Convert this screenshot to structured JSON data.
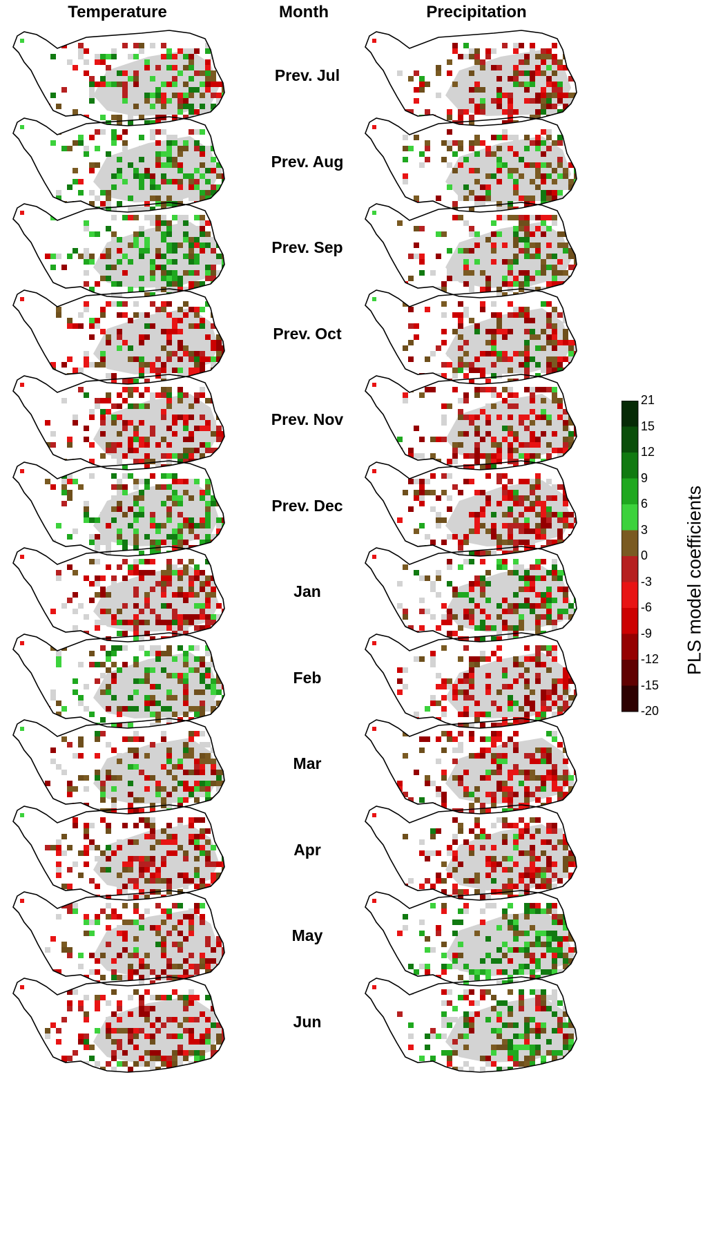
{
  "headers": {
    "temperature": "Temperature",
    "month": "Month",
    "precipitation": "Precipitation"
  },
  "months": [
    "Prev. Jul",
    "Prev. Aug",
    "Prev. Sep",
    "Prev. Oct",
    "Prev. Nov",
    "Prev. Dec",
    "Jan",
    "Feb",
    "Mar",
    "Apr",
    "May",
    "Jun"
  ],
  "panels": {
    "temperature": [
      "mixed",
      "green",
      "green",
      "red",
      "red",
      "green",
      "red",
      "green",
      "brown",
      "red",
      "red",
      "red"
    ],
    "precipitation": [
      "red",
      "brown",
      "brown",
      "red",
      "red",
      "red",
      "mixed",
      "red",
      "red",
      "red",
      "green",
      "green"
    ]
  },
  "legend": {
    "title": "PLS model coefficients",
    "ticks": [
      "21",
      "15",
      "12",
      "9",
      "6",
      "3",
      "0",
      "-3",
      "-6",
      "-9",
      "-12",
      "-15",
      "-20"
    ],
    "colors": [
      "#062b06",
      "#0a4f0a",
      "#117a11",
      "#1fa81f",
      "#3cd23c",
      "#7a5a22",
      "#b62020",
      "#e81414",
      "#cc0000",
      "#950000",
      "#600000",
      "#2d0000"
    ]
  },
  "colors": {
    "no_data": "#d3d3d3",
    "outline": "#000000"
  }
}
